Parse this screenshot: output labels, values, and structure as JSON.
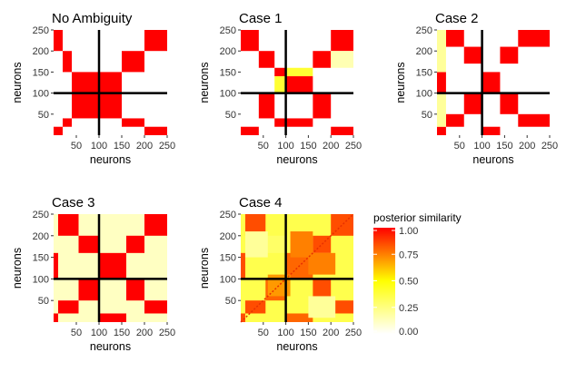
{
  "colors": {
    "low": "#ffffff",
    "mid": "#ffff00",
    "high": "#ff0000",
    "divider": "#000000"
  },
  "legend": {
    "title": "posterior similarity",
    "ticks": [
      "1.00",
      "0.75",
      "0.50",
      "0.25",
      "0.00"
    ],
    "tick_values": [
      1.0,
      0.75,
      0.5,
      0.25,
      0.0
    ]
  },
  "chart_data": [
    {
      "type": "heatmap",
      "title": "No Ambiguity",
      "xlabel": "neurons",
      "ylabel": "neurons",
      "xlim": [
        0,
        250
      ],
      "ylim": [
        0,
        250
      ],
      "xticks": [
        "50",
        "100",
        "150",
        "200",
        "250"
      ],
      "yticks": [
        "50",
        "100",
        "150",
        "200",
        "250"
      ],
      "dividers": [
        100
      ],
      "blocks": [
        {
          "x": [
            0,
            20
          ],
          "y": [
            200,
            250
          ],
          "v": 1
        },
        {
          "x": [
            200,
            250
          ],
          "y": [
            200,
            250
          ],
          "v": 1
        },
        {
          "x": [
            20,
            40
          ],
          "y": [
            150,
            200
          ],
          "v": 1
        },
        {
          "x": [
            150,
            200
          ],
          "y": [
            150,
            200
          ],
          "v": 1
        },
        {
          "x": [
            40,
            100
          ],
          "y": [
            100,
            150
          ],
          "v": 1
        },
        {
          "x": [
            100,
            150
          ],
          "y": [
            100,
            150
          ],
          "v": 1
        },
        {
          "x": [
            40,
            100
          ],
          "y": [
            40,
            100
          ],
          "v": 1
        },
        {
          "x": [
            100,
            150
          ],
          "y": [
            40,
            100
          ],
          "v": 1
        },
        {
          "x": [
            20,
            40
          ],
          "y": [
            20,
            40
          ],
          "v": 1
        },
        {
          "x": [
            150,
            200
          ],
          "y": [
            20,
            40
          ],
          "v": 1
        },
        {
          "x": [
            0,
            20
          ],
          "y": [
            0,
            20
          ],
          "v": 1
        },
        {
          "x": [
            200,
            250
          ],
          "y": [
            0,
            20
          ],
          "v": 1
        }
      ]
    },
    {
      "type": "heatmap",
      "title": "Case 1",
      "xlabel": "neurons",
      "ylabel": "neurons",
      "xlim": [
        0,
        250
      ],
      "ylim": [
        0,
        250
      ],
      "xticks": [
        "50",
        "100",
        "150",
        "200",
        "250"
      ],
      "yticks": [
        "50",
        "100",
        "150",
        "200",
        "250"
      ],
      "dividers": [
        100
      ],
      "blocks": [
        {
          "x": [
            0,
            40
          ],
          "y": [
            200,
            250
          ],
          "v": 1
        },
        {
          "x": [
            200,
            250
          ],
          "y": [
            200,
            250
          ],
          "v": 1
        },
        {
          "x": [
            40,
            75
          ],
          "y": [
            160,
            200
          ],
          "v": 1
        },
        {
          "x": [
            160,
            200
          ],
          "y": [
            160,
            200
          ],
          "v": 1
        },
        {
          "x": [
            75,
            100
          ],
          "y": [
            140,
            160
          ],
          "v": 1
        },
        {
          "x": [
            100,
            160
          ],
          "y": [
            140,
            160
          ],
          "v": 0.4
        },
        {
          "x": [
            100,
            160
          ],
          "y": [
            100,
            140
          ],
          "v": 1
        },
        {
          "x": [
            75,
            100
          ],
          "y": [
            100,
            140
          ],
          "v": 0.4
        },
        {
          "x": [
            40,
            75
          ],
          "y": [
            40,
            100
          ],
          "v": 1
        },
        {
          "x": [
            160,
            200
          ],
          "y": [
            40,
            100
          ],
          "v": 1
        },
        {
          "x": [
            75,
            100
          ],
          "y": [
            20,
            40
          ],
          "v": 1
        },
        {
          "x": [
            100,
            160
          ],
          "y": [
            20,
            40
          ],
          "v": 1
        },
        {
          "x": [
            0,
            40
          ],
          "y": [
            0,
            20
          ],
          "v": 1
        },
        {
          "x": [
            200,
            250
          ],
          "y": [
            0,
            20
          ],
          "v": 1
        },
        {
          "x": [
            200,
            250
          ],
          "y": [
            160,
            200
          ],
          "v": 0.15
        }
      ]
    },
    {
      "type": "heatmap",
      "title": "Case 2",
      "xlabel": "neurons",
      "ylabel": "neurons",
      "xlim": [
        0,
        250
      ],
      "ylim": [
        0,
        250
      ],
      "xticks": [
        "50",
        "100",
        "150",
        "200",
        "250"
      ],
      "yticks": [
        "50",
        "100",
        "150",
        "200",
        "250"
      ],
      "dividers": [
        100
      ],
      "blocks": [
        {
          "x": [
            20,
            60
          ],
          "y": [
            210,
            250
          ],
          "v": 1
        },
        {
          "x": [
            180,
            250
          ],
          "y": [
            210,
            250
          ],
          "v": 1
        },
        {
          "x": [
            60,
            100
          ],
          "y": [
            170,
            210
          ],
          "v": 1
        },
        {
          "x": [
            140,
            180
          ],
          "y": [
            170,
            210
          ],
          "v": 1
        },
        {
          "x": [
            0,
            20
          ],
          "y": [
            100,
            150
          ],
          "v": 1
        },
        {
          "x": [
            100,
            140
          ],
          "y": [
            100,
            150
          ],
          "v": 1
        },
        {
          "x": [
            60,
            100
          ],
          "y": [
            50,
            100
          ],
          "v": 1
        },
        {
          "x": [
            140,
            180
          ],
          "y": [
            50,
            100
          ],
          "v": 1
        },
        {
          "x": [
            20,
            60
          ],
          "y": [
            20,
            50
          ],
          "v": 1
        },
        {
          "x": [
            180,
            250
          ],
          "y": [
            20,
            50
          ],
          "v": 1
        },
        {
          "x": [
            0,
            20
          ],
          "y": [
            0,
            20
          ],
          "v": 1
        },
        {
          "x": [
            100,
            140
          ],
          "y": [
            0,
            20
          ],
          "v": 1
        },
        {
          "x": [
            0,
            20
          ],
          "y": [
            150,
            250
          ],
          "v": 0.2
        },
        {
          "x": [
            0,
            20
          ],
          "y": [
            20,
            100
          ],
          "v": 0.2
        }
      ]
    },
    {
      "type": "heatmap",
      "title": "Case 3",
      "xlabel": "neurons",
      "ylabel": "neurons",
      "xlim": [
        0,
        250
      ],
      "ylim": [
        0,
        250
      ],
      "xticks": [
        "50",
        "100",
        "150",
        "200",
        "250"
      ],
      "yticks": [
        "50",
        "100",
        "150",
        "200",
        "250"
      ],
      "dividers": [
        100
      ],
      "blocks": [
        {
          "x": [
            0,
            250
          ],
          "y": [
            0,
            250
          ],
          "v": 0.12
        },
        {
          "x": [
            10,
            55
          ],
          "y": [
            200,
            250
          ],
          "v": 1
        },
        {
          "x": [
            200,
            250
          ],
          "y": [
            200,
            250
          ],
          "v": 1
        },
        {
          "x": [
            55,
            100
          ],
          "y": [
            160,
            200
          ],
          "v": 1
        },
        {
          "x": [
            160,
            200
          ],
          "y": [
            160,
            200
          ],
          "v": 1
        },
        {
          "x": [
            0,
            10
          ],
          "y": [
            100,
            160
          ],
          "v": 1
        },
        {
          "x": [
            100,
            160
          ],
          "y": [
            100,
            160
          ],
          "v": 1
        },
        {
          "x": [
            55,
            100
          ],
          "y": [
            50,
            100
          ],
          "v": 1
        },
        {
          "x": [
            160,
            200
          ],
          "y": [
            50,
            100
          ],
          "v": 1
        },
        {
          "x": [
            10,
            55
          ],
          "y": [
            20,
            50
          ],
          "v": 1
        },
        {
          "x": [
            200,
            250
          ],
          "y": [
            20,
            50
          ],
          "v": 1
        },
        {
          "x": [
            0,
            10
          ],
          "y": [
            0,
            20
          ],
          "v": 1
        },
        {
          "x": [
            100,
            160
          ],
          "y": [
            0,
            20
          ],
          "v": 1
        }
      ]
    },
    {
      "type": "heatmap",
      "title": "Case 4",
      "xlabel": "neurons",
      "ylabel": "neurons",
      "xlim": [
        0,
        250
      ],
      "ylim": [
        0,
        250
      ],
      "xticks": [
        "50",
        "100",
        "150",
        "200",
        "250"
      ],
      "yticks": [
        "50",
        "100",
        "150",
        "200",
        "250"
      ],
      "dividers": [
        100
      ],
      "diagonal": true,
      "blocks": [
        {
          "x": [
            0,
            250
          ],
          "y": [
            0,
            250
          ],
          "v": 0.35
        },
        {
          "x": [
            10,
            55
          ],
          "y": [
            200,
            250
          ],
          "v": 0.85
        },
        {
          "x": [
            200,
            250
          ],
          "y": [
            200,
            250
          ],
          "v": 0.85
        },
        {
          "x": [
            55,
            100
          ],
          "y": [
            160,
            200
          ],
          "v": 0.3
        },
        {
          "x": [
            160,
            200
          ],
          "y": [
            160,
            200
          ],
          "v": 0.85
        },
        {
          "x": [
            0,
            10
          ],
          "y": [
            100,
            160
          ],
          "v": 0.85
        },
        {
          "x": [
            100,
            160
          ],
          "y": [
            100,
            160
          ],
          "v": 0.8
        },
        {
          "x": [
            55,
            100
          ],
          "y": [
            50,
            100
          ],
          "v": 0.8
        },
        {
          "x": [
            160,
            200
          ],
          "y": [
            50,
            100
          ],
          "v": 0.85
        },
        {
          "x": [
            10,
            55
          ],
          "y": [
            20,
            50
          ],
          "v": 0.85
        },
        {
          "x": [
            200,
            250
          ],
          "y": [
            20,
            50
          ],
          "v": 0.85
        },
        {
          "x": [
            0,
            10
          ],
          "y": [
            0,
            20
          ],
          "v": 0.85
        },
        {
          "x": [
            100,
            160
          ],
          "y": [
            0,
            20
          ],
          "v": 0.8
        },
        {
          "x": [
            150,
            210
          ],
          "y": [
            110,
            160
          ],
          "v": 0.75
        },
        {
          "x": [
            110,
            160
          ],
          "y": [
            150,
            210
          ],
          "v": 0.75
        },
        {
          "x": [
            60,
            110
          ],
          "y": [
            60,
            110
          ],
          "v": 0.7
        },
        {
          "x": [
            150,
            210
          ],
          "y": [
            10,
            60
          ],
          "v": 0.2
        },
        {
          "x": [
            10,
            60
          ],
          "y": [
            150,
            210
          ],
          "v": 0.2
        }
      ]
    }
  ]
}
